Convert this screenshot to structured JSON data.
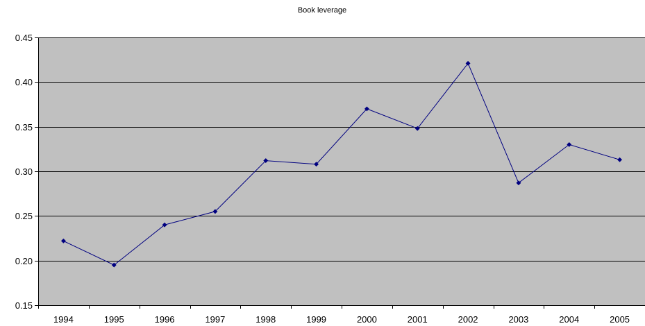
{
  "chart_data": {
    "type": "line",
    "title": "Book leverage",
    "xlabel": "",
    "ylabel": "",
    "categories": [
      "1994",
      "1995",
      "1996",
      "1997",
      "1998",
      "1999",
      "2000",
      "2001",
      "2002",
      "2003",
      "2004",
      "2005"
    ],
    "series": [
      {
        "values": [
          0.222,
          0.195,
          0.24,
          0.255,
          0.312,
          0.308,
          0.37,
          0.348,
          0.421,
          0.287,
          0.33,
          0.313
        ]
      }
    ],
    "ylim": [
      0.15,
      0.45
    ],
    "yticks": [
      "0.15",
      "0.20",
      "0.25",
      "0.30",
      "0.35",
      "0.40",
      "0.45"
    ],
    "grid": "horizontal",
    "legend": "none",
    "colors": {
      "plot_background": "#c0c0c0",
      "line": "#000080",
      "grid": "#000000"
    }
  }
}
